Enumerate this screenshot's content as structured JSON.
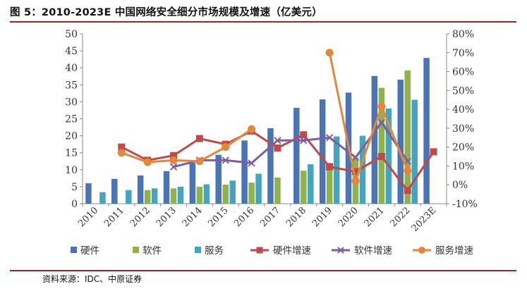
{
  "title": "图 5：2010-2023E 中国网络安全细分市场规模及增速（亿美元）",
  "source": "资料来源：IDC、中原证券",
  "colors": {
    "hardware": "#4a74b2",
    "software": "#8fb24f",
    "service": "#45a5bb",
    "hardware_growth": "#be4b48",
    "software_growth": "#7d5fa0",
    "service_growth": "#e5863a",
    "accent_rule": "#b41e23"
  },
  "chart_data": {
    "type": "bar",
    "title": "2010-2023E 中国网络安全细分市场规模及增速（亿美元）",
    "categories": [
      "2010",
      "2011",
      "2012",
      "2013",
      "2014",
      "2015",
      "2016",
      "2017",
      "2018",
      "2019",
      "2020",
      "2021",
      "2022",
      "2023E"
    ],
    "ylim": [
      0,
      50
    ],
    "y_ticks": [
      "0",
      "5",
      "10",
      "15",
      "20",
      "25",
      "30",
      "35",
      "40",
      "45",
      "50"
    ],
    "y2lim": [
      -10,
      80
    ],
    "y2_ticks": [
      "-10%",
      "0%",
      "10%",
      "20%",
      "30%",
      "40%",
      "50%",
      "60%",
      "70%",
      "80%"
    ],
    "grid": false,
    "legend_position": "bottom",
    "series": [
      {
        "name": "硬件",
        "kind": "bar",
        "axis": "left",
        "color_key": "hardware",
        "values": [
          6.0,
          7.3,
          8.3,
          9.6,
          12.0,
          14.4,
          18.6,
          22.2,
          28.2,
          30.7,
          32.7,
          37.6,
          36.5,
          42.9
        ]
      },
      {
        "name": "软件",
        "kind": "bar",
        "axis": "left",
        "color_key": "software",
        "values": [
          null,
          null,
          4.0,
          4.5,
          5.0,
          5.6,
          6.2,
          7.7,
          9.7,
          12.0,
          13.6,
          34.1,
          39.2,
          null
        ]
      },
      {
        "name": "服务",
        "kind": "bar",
        "axis": "left",
        "color_key": "service",
        "values": [
          3.4,
          4.0,
          4.5,
          5.0,
          5.7,
          6.8,
          8.8,
          null,
          11.6,
          19.8,
          20.0,
          28.0,
          30.6,
          null
        ]
      },
      {
        "name": "硬件增速",
        "kind": "line",
        "axis": "right",
        "color_key": "hardware_growth",
        "marker": "square",
        "values": [
          null,
          20.0,
          13.0,
          15.5,
          24.5,
          21.5,
          28.5,
          19.5,
          26.5,
          9.5,
          7.0,
          15.0,
          -3.0,
          17.5
        ]
      },
      {
        "name": "软件增速",
        "kind": "line",
        "axis": "right",
        "color_key": "software_growth",
        "marker": "x",
        "values": [
          null,
          null,
          null,
          9.5,
          13.0,
          13.0,
          11.5,
          23.5,
          23.5,
          25.0,
          14.5,
          33.0,
          12.5,
          null
        ]
      },
      {
        "name": "服务增速",
        "kind": "line",
        "axis": "right",
        "color_key": "service_growth",
        "marker": "circle",
        "values": [
          null,
          17.0,
          12.0,
          13.0,
          12.5,
          20.0,
          29.5,
          null,
          null,
          70.0,
          2.0,
          41.5,
          7.5,
          null
        ]
      }
    ]
  }
}
